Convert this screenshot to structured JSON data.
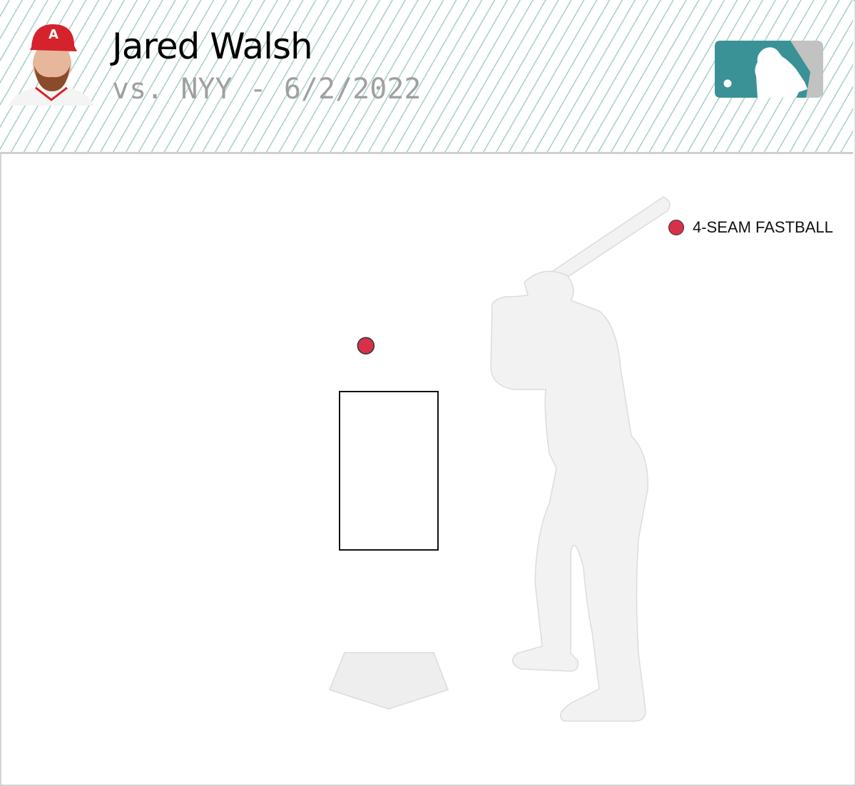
{
  "header": {
    "player_name": "Jared Walsh",
    "subtitle": "vs. NYY - 6/2/2022",
    "team_logo": "angels-cap-photo",
    "league_logo": "mlb-logo"
  },
  "colors": {
    "accent": "#3a9296",
    "pitch": "#d7314a",
    "stripe": "#a9cfcc",
    "silhouette": "#f2f2f2"
  },
  "chart_data": {
    "type": "scatter",
    "title": "",
    "legend": [
      {
        "name": "4-SEAM FASTBALL",
        "color": "#d7314a"
      }
    ],
    "legend_placement": "top-right",
    "strike_zone": {
      "left": -0.708,
      "right": 0.708,
      "bottom": 1.6,
      "top": 3.5
    },
    "points": [
      {
        "pitch_type": "4-SEAM FASTBALL",
        "plate_x": -0.33,
        "plate_z": 4.05
      }
    ]
  }
}
